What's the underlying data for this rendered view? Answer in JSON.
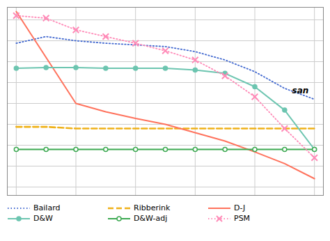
{
  "chart_data": {
    "type": "line",
    "x": [
      0,
      1,
      2,
      3,
      4,
      5,
      6,
      7,
      8,
      9,
      10
    ],
    "series": [
      {
        "name": "Bailard",
        "line_style": "dotted",
        "values": [
          0.72,
          0.8,
          0.75,
          0.72,
          0.7,
          0.68,
          0.62,
          0.52,
          0.38,
          0.18,
          0.05
        ]
      },
      {
        "name": "Ribberink",
        "line_style": "dashed",
        "values": [
          -0.28,
          -0.28,
          -0.3,
          -0.3,
          -0.3,
          -0.3,
          -0.3,
          -0.3,
          -0.3,
          -0.3,
          -0.3
        ]
      },
      {
        "name": "D-J",
        "line_style": "solid",
        "values": [
          1.1,
          0.55,
          0.0,
          -0.1,
          -0.18,
          -0.25,
          -0.35,
          -0.45,
          -0.58,
          -0.72,
          -0.9
        ]
      },
      {
        "name": "D&W",
        "line_style": "solid",
        "marker": "circle",
        "values": [
          0.42,
          0.43,
          0.43,
          0.42,
          0.42,
          0.42,
          0.4,
          0.36,
          0.2,
          -0.08,
          -0.55
        ]
      },
      {
        "name": "D&W-adj",
        "line_style": "solid",
        "marker": "circle-open",
        "values": [
          -0.55,
          -0.55,
          -0.55,
          -0.55,
          -0.55,
          -0.55,
          -0.55,
          -0.55,
          -0.55,
          -0.55,
          -0.55
        ]
      },
      {
        "name": "PSM",
        "line_style": "dotted",
        "marker": "x",
        "values": [
          1.05,
          1.02,
          0.88,
          0.8,
          0.72,
          0.63,
          0.52,
          0.33,
          0.08,
          -0.3,
          -0.65
        ]
      }
    ],
    "xlim": [
      -0.3,
      10.3
    ],
    "xticks": [
      0,
      2,
      4,
      6,
      8,
      10
    ],
    "ylim": [
      -1.1,
      1.15
    ],
    "yticks": [
      -1,
      -0.75,
      -0.5,
      -0.25,
      0,
      0.25,
      0.5,
      0.75,
      1
    ],
    "grid": true,
    "legend": "lower left",
    "tick_labels": false,
    "annotations": [
      {
        "text": "san",
        "x": 9.25,
        "y": 0.15
      }
    ]
  }
}
